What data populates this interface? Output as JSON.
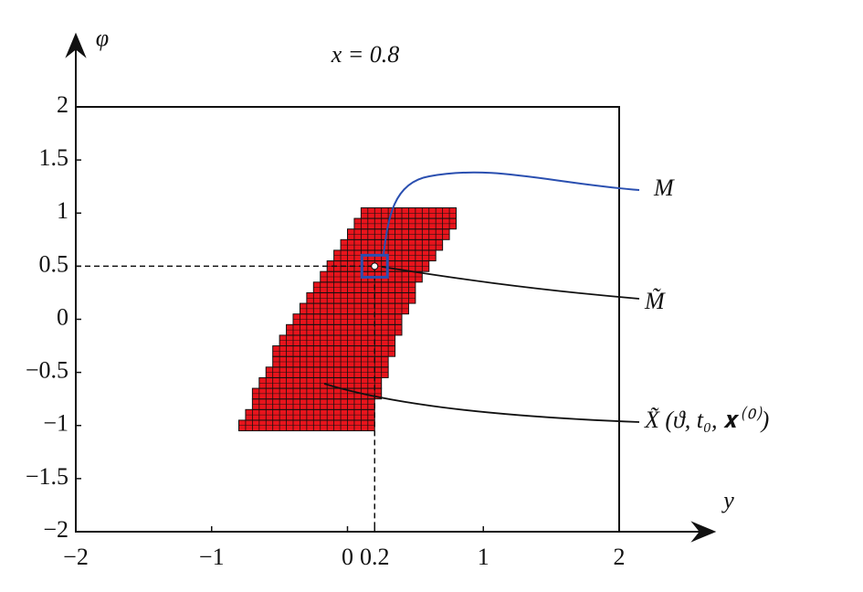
{
  "chart_data": {
    "type": "region",
    "title": "x = 0.8",
    "x_label": "y",
    "y_label": "φ",
    "xlim": [
      -2,
      2
    ],
    "ylim": [
      -2,
      2
    ],
    "xticks": [
      {
        "value": -2,
        "label": "−2"
      },
      {
        "value": -1,
        "label": "−1"
      },
      0,
      0.2,
      1,
      2
    ],
    "yticks": [
      {
        "value": -2,
        "label": "−2"
      },
      {
        "value": -1.5,
        "label": "−1.5"
      },
      {
        "value": -1,
        "label": "−1"
      },
      {
        "value": -0.5,
        "label": "−0.5"
      },
      0,
      0.5,
      1,
      1.5,
      2
    ],
    "color": "#e8141c",
    "region": {
      "phi": [
        -1,
        -0.9,
        -0.8,
        -0.7,
        -0.6,
        -0.5,
        -0.4,
        -0.3,
        -0.2,
        -0.1,
        0,
        0.1,
        0.2,
        0.3,
        0.4,
        0.5,
        0.6,
        0.7,
        0.8,
        0.9,
        1
      ],
      "y_left": [
        -0.8,
        -0.75,
        -0.7,
        -0.7,
        -0.65,
        -0.6,
        -0.55,
        -0.55,
        -0.5,
        -0.45,
        -0.4,
        -0.35,
        -0.3,
        -0.25,
        -0.2,
        -0.15,
        -0.1,
        -0.05,
        0,
        0.05,
        0.1
      ],
      "y_right": [
        0.2,
        0.2,
        0.2,
        0.25,
        0.25,
        0.3,
        0.3,
        0.35,
        0.35,
        0.4,
        0.4,
        0.45,
        0.5,
        0.5,
        0.55,
        0.6,
        0.65,
        0.7,
        0.75,
        0.8,
        0.8
      ]
    },
    "point": {
      "y": 0.2,
      "phi": 0.5
    },
    "annotations": [
      "M",
      "M̃",
      "X̃ (ϑ, t₀, 𝐱⁽⁰⁾)"
    ]
  }
}
